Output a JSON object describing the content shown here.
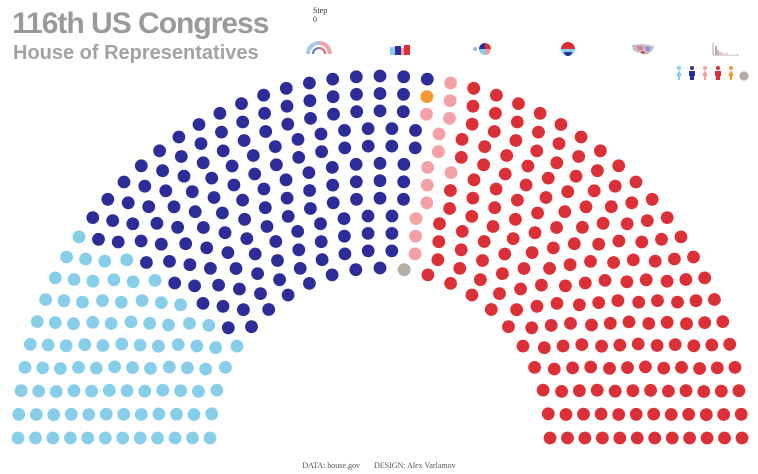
{
  "header": {
    "title": "116th US Congress",
    "subtitle": "House of Representatives"
  },
  "step": {
    "label": "Step",
    "value": "0"
  },
  "view_buttons": [
    {
      "name": "arc-view-button",
      "icon": "hemicycle-icon"
    },
    {
      "name": "bar-view-button",
      "icon": "bar-chart-icon"
    },
    {
      "name": "pie-view-button",
      "icon": "pie-chart-icon"
    },
    {
      "name": "circle-view-button",
      "icon": "circle-chart-icon"
    },
    {
      "name": "map-view-button",
      "icon": "us-map-icon"
    },
    {
      "name": "histogram-view-button",
      "icon": "histogram-icon"
    }
  ],
  "legend": [
    {
      "name": "democrat-female",
      "icon": "female-figure-icon",
      "color": "#87ceeb"
    },
    {
      "name": "democrat-male",
      "icon": "male-figure-icon",
      "color": "#2d2d9a"
    },
    {
      "name": "republican-female",
      "icon": "female-figure-icon",
      "color": "#f5a0a5"
    },
    {
      "name": "republican-male",
      "icon": "male-figure-icon",
      "color": "#dc3037"
    },
    {
      "name": "other-female",
      "icon": "female-figure-icon",
      "color": "#f29a2e"
    },
    {
      "name": "vacant",
      "icon": "circle-icon",
      "color": "#b3ada8"
    }
  ],
  "colors": {
    "dem_female": "#87ceeb",
    "dem_male": "#2d2d9a",
    "rep_female": "#f5a0a5",
    "rep_male": "#dc3037",
    "other": "#f29a2e",
    "vacant": "#b3ada8"
  },
  "seats": {
    "total": 435,
    "groups": [
      {
        "key": "dem_female",
        "count": 89
      },
      {
        "key": "dem_male",
        "count": 146
      },
      {
        "key": "other",
        "count": 1
      },
      {
        "key": "vacant",
        "count": 1
      },
      {
        "key": "rep_female",
        "count": 13
      },
      {
        "key": "rep_male",
        "count": 185
      }
    ]
  },
  "footer": {
    "data": "DATA: house.gov",
    "design": "DESIGN: Alex Varlamov"
  }
}
